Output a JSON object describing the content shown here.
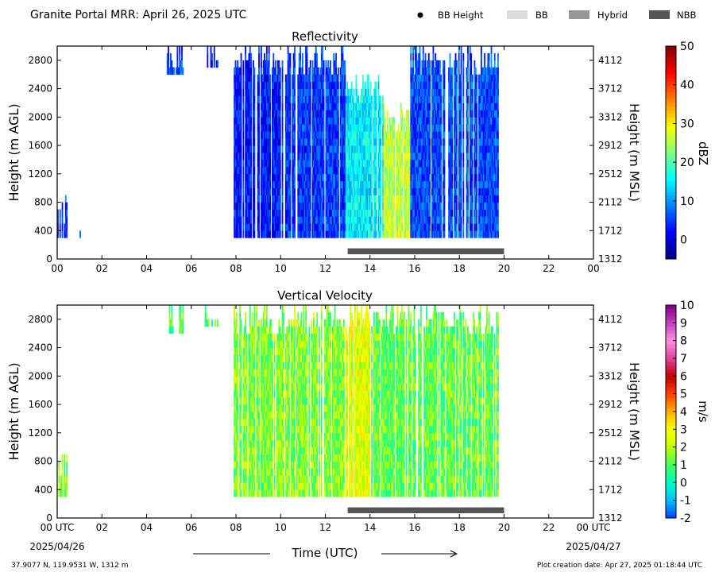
{
  "header": {
    "title": "Granite Portal MRR:  April 26, 2025 UTC",
    "legend": [
      {
        "label": "BB Height",
        "symbol": "dot",
        "color": "#000000"
      },
      {
        "label": "BB",
        "symbol": "box",
        "color": "#dcdcdc"
      },
      {
        "label": "Hybrid",
        "symbol": "box",
        "color": "#969696"
      },
      {
        "label": "NBB",
        "symbol": "box",
        "color": "#555555"
      }
    ]
  },
  "footer": {
    "location": "37.9077 N, 119.9531 W, 1312 m",
    "creation_date": "Plot creation date: Apr 27, 2025 01:18:44 UTC",
    "xlabel": "Time (UTC)",
    "start_date": "2025/04/26",
    "end_date": "2025/04/27",
    "start_time_label": "00 UTC",
    "end_time_label": "00 UTC"
  },
  "chart_data": [
    {
      "type": "heatmap",
      "title": "Reflectivity",
      "ylabel": "Height (m AGL)",
      "ylabel_right": "Height (m MSL)",
      "colorbar_label": "dBZ",
      "colorbar_ticks": [
        "0",
        "10",
        "20",
        "30",
        "40",
        "50"
      ],
      "colorbar_range": [
        -5,
        50
      ],
      "colormap": [
        "#00007f",
        "#0000ff",
        "#007fff",
        "#00ffff",
        "#7fff7f",
        "#ffff00",
        "#ff7f00",
        "#ff0000",
        "#7f0000"
      ],
      "xlim": [
        0,
        24
      ],
      "ylim": [
        0,
        3000
      ],
      "xticks": [
        "00",
        "02",
        "04",
        "06",
        "08",
        "10",
        "12",
        "14",
        "16",
        "18",
        "20",
        "22",
        "00"
      ],
      "yticks": [
        0,
        400,
        800,
        1200,
        1600,
        2000,
        2400,
        2800
      ],
      "yticks_right": [
        "1312",
        "1712",
        "2112",
        "2512",
        "2912",
        "3312",
        "3712",
        "4112"
      ],
      "precip_type_bar": {
        "start": 13.0,
        "end": 20.0,
        "class": "NBB"
      },
      "echo_regions": [
        {
          "start": 0.0,
          "end": 0.4,
          "top": 900,
          "value": 5
        },
        {
          "start": 1.0,
          "end": 1.1,
          "top": 400,
          "value": 3
        },
        {
          "start": 4.9,
          "end": 5.6,
          "top": 3000,
          "value": 6,
          "bottom": 2600
        },
        {
          "start": 6.6,
          "end": 7.2,
          "top": 3000,
          "value": 4,
          "bottom": 2700
        },
        {
          "start": 7.9,
          "end": 10.0,
          "top": 3000,
          "value": 3
        },
        {
          "start": 10.0,
          "end": 12.9,
          "top": 3000,
          "value": 5
        },
        {
          "start": 12.9,
          "end": 14.6,
          "top": 2600,
          "value": 15
        },
        {
          "start": 14.6,
          "end": 15.8,
          "top": 2200,
          "value": 26
        },
        {
          "start": 15.8,
          "end": 19.8,
          "top": 3000,
          "value": 6
        }
      ]
    },
    {
      "type": "heatmap",
      "title": "Vertical Velocity",
      "ylabel": "Height (m AGL)",
      "ylabel_right": "Height (m MSL)",
      "colorbar_label": "m/s",
      "colorbar_ticks": [
        "-2",
        "-1",
        "0",
        "1",
        "2",
        "3",
        "4",
        "5",
        "6",
        "7",
        "8",
        "9",
        "10"
      ],
      "colorbar_range": [
        -2,
        10
      ],
      "colormap": [
        "#0040ff",
        "#00c0ff",
        "#00ffc0",
        "#40ff60",
        "#c0ff00",
        "#ffff00",
        "#ffb000",
        "#ff4000",
        "#c00000",
        "#e0409a",
        "#ff90e0",
        "#c040c0",
        "#800080"
      ],
      "xlim": [
        0,
        24
      ],
      "ylim": [
        0,
        3000
      ],
      "xticks": [
        "00 UTC",
        "02",
        "04",
        "06",
        "08",
        "10",
        "12",
        "14",
        "16",
        "18",
        "20",
        "22",
        "00 UTC"
      ],
      "yticks": [
        0,
        400,
        800,
        1200,
        1600,
        2000,
        2400,
        2800
      ],
      "yticks_right": [
        "1312",
        "1712",
        "2112",
        "2512",
        "2912",
        "3312",
        "3712",
        "4112"
      ],
      "precip_type_bar": {
        "start": 13.0,
        "end": 20.0,
        "class": "NBB"
      },
      "echo_regions": [
        {
          "start": 0.0,
          "end": 0.4,
          "top": 900,
          "value": 1.5
        },
        {
          "start": 1.0,
          "end": 1.1,
          "top": 400,
          "value": 1
        },
        {
          "start": 4.9,
          "end": 5.6,
          "top": 3000,
          "value": 1,
          "bottom": 2600
        },
        {
          "start": 6.6,
          "end": 7.2,
          "top": 3000,
          "value": 1,
          "bottom": 2700
        },
        {
          "start": 7.9,
          "end": 12.9,
          "top": 3000,
          "value": 1.5
        },
        {
          "start": 12.9,
          "end": 14.0,
          "top": 3000,
          "value": 2.5
        },
        {
          "start": 14.0,
          "end": 19.8,
          "top": 3000,
          "value": 1.2
        }
      ]
    }
  ]
}
